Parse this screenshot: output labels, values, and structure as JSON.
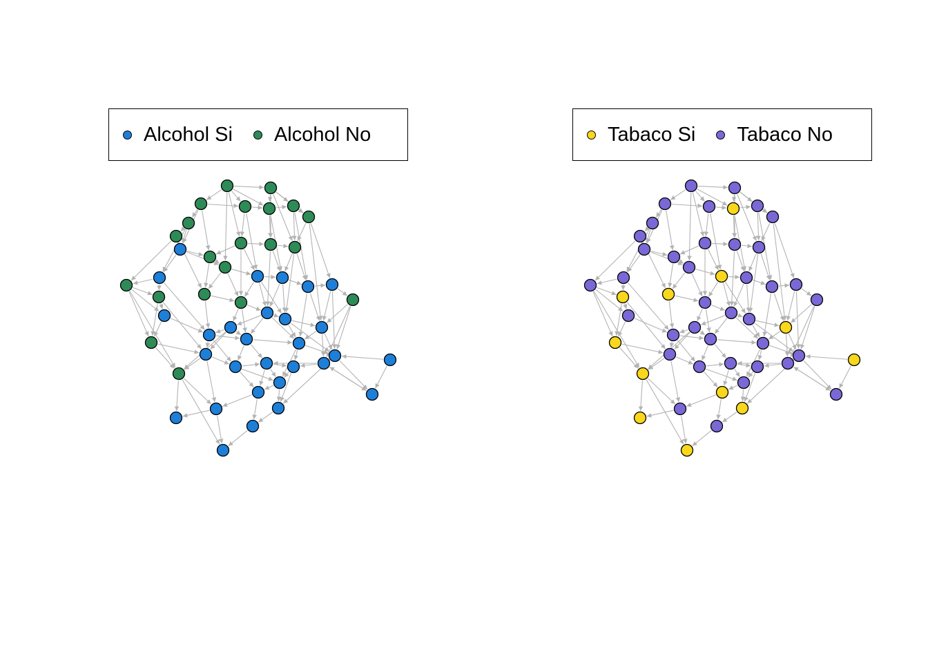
{
  "colors": {
    "edge": "#b3b3b3",
    "node_border": "#000000",
    "alcohol_si": "#1e7fd8",
    "alcohol_no": "#2e8b57",
    "tabaco_si": "#f9d71c",
    "tabaco_no": "#7b68d6"
  },
  "panels": [
    {
      "id": "alcohol",
      "legend": [
        {
          "label": "Alcohol Si",
          "color": "#1e7fd8"
        },
        {
          "label": "Alcohol No",
          "color": "#2e8b57"
        }
      ],
      "node_colors": [
        "#2e8b57",
        "#2e8b57",
        "#2e8b57",
        "#2e8b57",
        "#2e8b57",
        "#2e8b57",
        "#2e8b57",
        "#2e8b57",
        "#2e8b57",
        "#1e7fd8",
        "#2e8b57",
        "#2e8b57",
        "#2e8b57",
        "#2e8b57",
        "#2e8b57",
        "#1e7fd8",
        "#2e8b57",
        "#1e7fd8",
        "#1e7fd8",
        "#1e7fd8",
        "#1e7fd8",
        "#2e8b57",
        "#2e8b57",
        "#2e8b57",
        "#2e8b57",
        "#1e7fd8",
        "#1e7fd8",
        "#1e7fd8",
        "#1e7fd8",
        "#1e7fd8",
        "#1e7fd8",
        "#2e8b57",
        "#1e7fd8",
        "#1e7fd8",
        "#1e7fd8",
        "#1e7fd8",
        "#1e7fd8",
        "#1e7fd8",
        "#1e7fd8",
        "#1e7fd8",
        "#1e7fd8",
        "#2e8b57",
        "#1e7fd8",
        "#1e7fd8",
        "#1e7fd8",
        "#1e7fd8",
        "#1e7fd8",
        "#1e7fd8",
        "#1e7fd8",
        "#1e7fd8",
        "#1e7fd8"
      ]
    },
    {
      "id": "tabaco",
      "legend": [
        {
          "label": "Tabaco Si",
          "color": "#f9d71c"
        },
        {
          "label": "Tabaco No",
          "color": "#7b68d6"
        }
      ],
      "node_colors": [
        "#7b68d6",
        "#7b68d6",
        "#7b68d6",
        "#7b68d6",
        "#f9d71c",
        "#7b68d6",
        "#7b68d6",
        "#7b68d6",
        "#7b68d6",
        "#7b68d6",
        "#7b68d6",
        "#7b68d6",
        "#7b68d6",
        "#7b68d6",
        "#7b68d6",
        "#7b68d6",
        "#7b68d6",
        "#f9d71c",
        "#7b68d6",
        "#7b68d6",
        "#7b68d6",
        "#7b68d6",
        "#f9d71c",
        "#f9d71c",
        "#7b68d6",
        "#7b68d6",
        "#7b68d6",
        "#7b68d6",
        "#7b68d6",
        "#f9d71c",
        "#7b68d6",
        "#f9d71c",
        "#7b68d6",
        "#7b68d6",
        "#7b68d6",
        "#f9d71c",
        "#7b68d6",
        "#7b68d6",
        "#7b68d6",
        "#7b68d6",
        "#7b68d6",
        "#f9d71c",
        "#7b68d6",
        "#f9d71c",
        "#7b68d6",
        "#7b68d6",
        "#f9d71c",
        "#f9d71c",
        "#7b68d6",
        "#f9d71c",
        "#f9d71c"
      ]
    }
  ]
}
